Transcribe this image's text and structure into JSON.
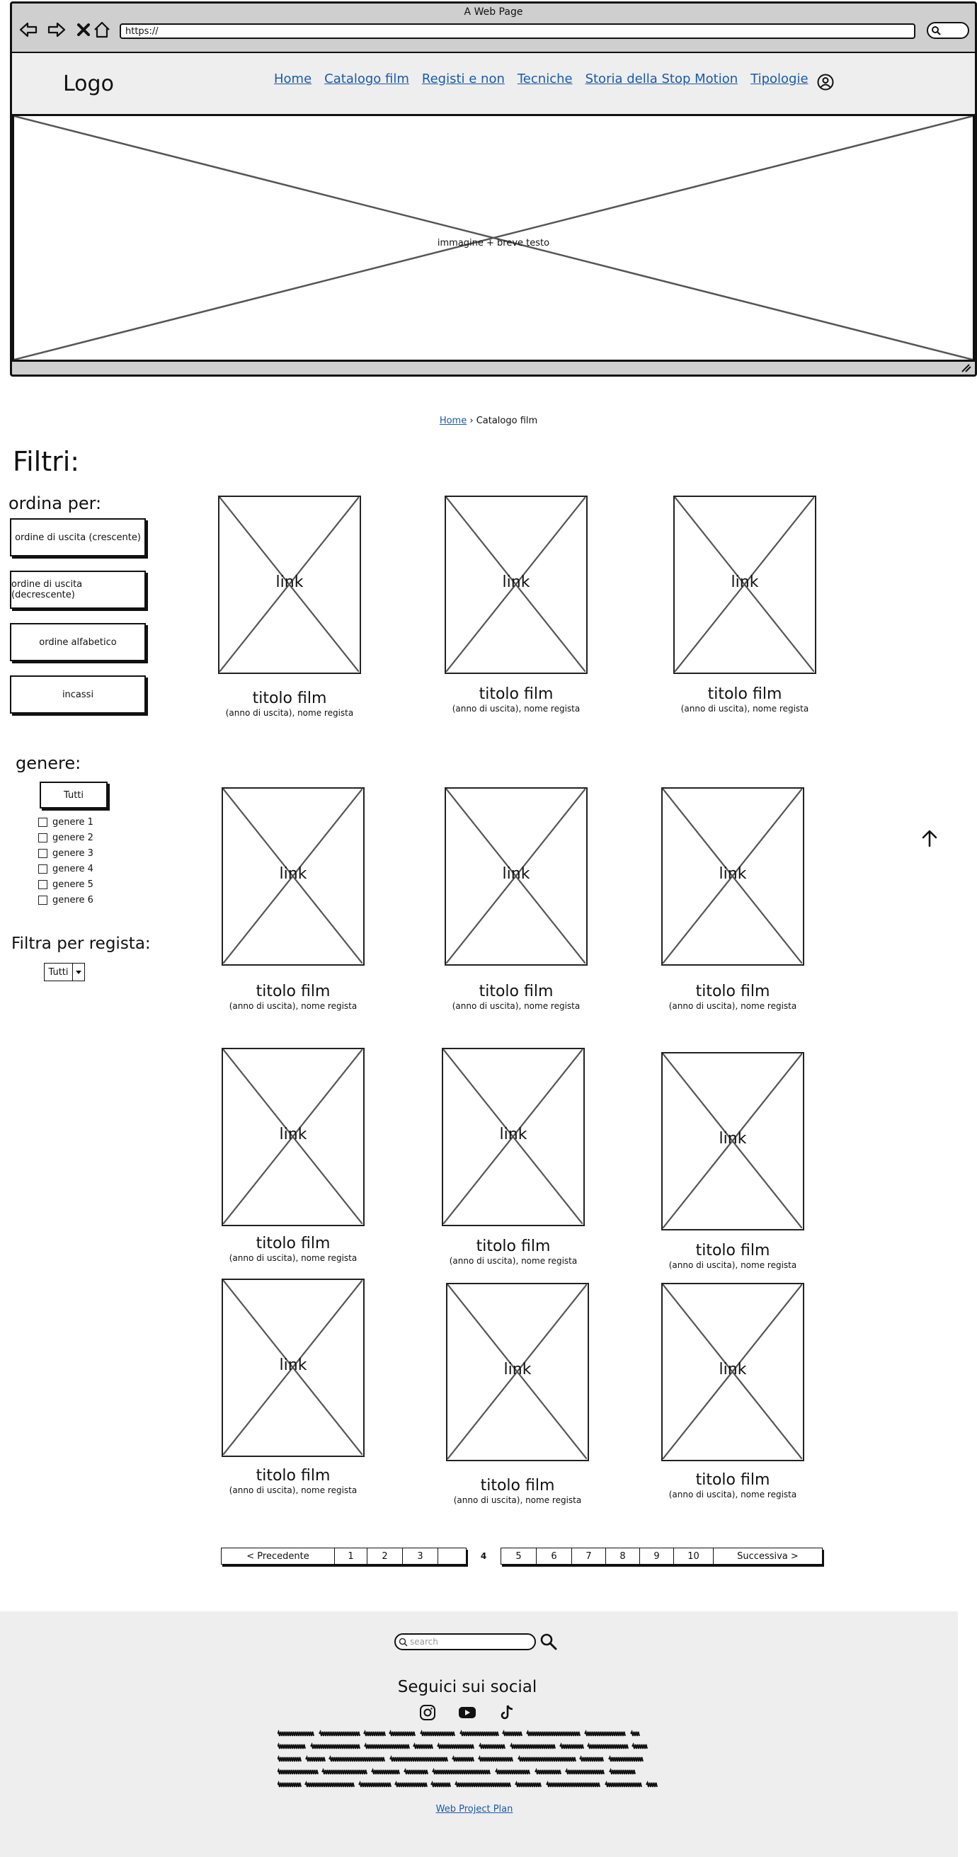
{
  "browser": {
    "window_title": "A Web Page",
    "url": "https://"
  },
  "header": {
    "logo": "Logo",
    "nav": [
      "Home",
      "Catalogo film",
      "Registi e non",
      "Tecniche",
      "Storia della Stop Motion",
      "Tipologie"
    ]
  },
  "hero": {
    "text": "immagine + breve testo"
  },
  "breadcrumb": {
    "home": "Home",
    "separator": "›",
    "current": "Catalogo film"
  },
  "filters": {
    "title": "Filtri:",
    "order_title": "ordina per:",
    "order_options": [
      "ordine di uscita (crescente)",
      "ordine di uscita (decrescente)",
      "ordine alfabetico",
      "incassi"
    ],
    "genre_title": "genere:",
    "all_button": "Tutti",
    "genres": [
      "genere 1",
      "genere 2",
      "genere 3",
      "genere 4",
      "genere 5",
      "genere 6"
    ],
    "director_title": "Filtra per regista:",
    "director_value": "Tutti"
  },
  "cards": [
    {
      "label": "link",
      "title": "titolo film",
      "subtitle": "(anno di uscita), nome regista"
    },
    {
      "label": "link",
      "title": "titolo film",
      "subtitle": "(anno di uscita), nome regista"
    },
    {
      "label": "link",
      "title": "titolo film",
      "subtitle": "(anno di uscita), nome regista"
    },
    {
      "label": "link",
      "title": "titolo film",
      "subtitle": "(anno di uscita), nome regista"
    },
    {
      "label": "link",
      "title": "titolo film",
      "subtitle": "(anno di uscita), nome regista"
    },
    {
      "label": "link",
      "title": "titolo film",
      "subtitle": "(anno di uscita), nome regista"
    },
    {
      "label": "link",
      "title": "titolo film",
      "subtitle": "(anno di uscita), nome regista"
    },
    {
      "label": "link",
      "title": "titolo film",
      "subtitle": "(anno di uscita), nome regista"
    },
    {
      "label": "link",
      "title": "titolo film",
      "subtitle": "(anno di uscita), nome regista"
    },
    {
      "label": "link",
      "title": "titolo film",
      "subtitle": "(anno di uscita), nome regista"
    },
    {
      "label": "link",
      "title": "titolo film",
      "subtitle": "(anno di uscita), nome regista"
    },
    {
      "label": "link",
      "title": "titolo film",
      "subtitle": "(anno di uscita), nome regista"
    }
  ],
  "pagination": {
    "prev": "< Precedente",
    "pages_before": [
      "1",
      "2",
      "3",
      ""
    ],
    "current": "4",
    "pages_after": [
      "5",
      "6",
      "7",
      "8",
      "9",
      "10"
    ],
    "next": "Successiva >"
  },
  "footer": {
    "search_placeholder": "search",
    "social_title": "Seguici sui social",
    "social_icons": [
      "instagram-icon",
      "youtube-icon",
      "tiktok-icon"
    ],
    "project_link": "Web Project Plan"
  }
}
